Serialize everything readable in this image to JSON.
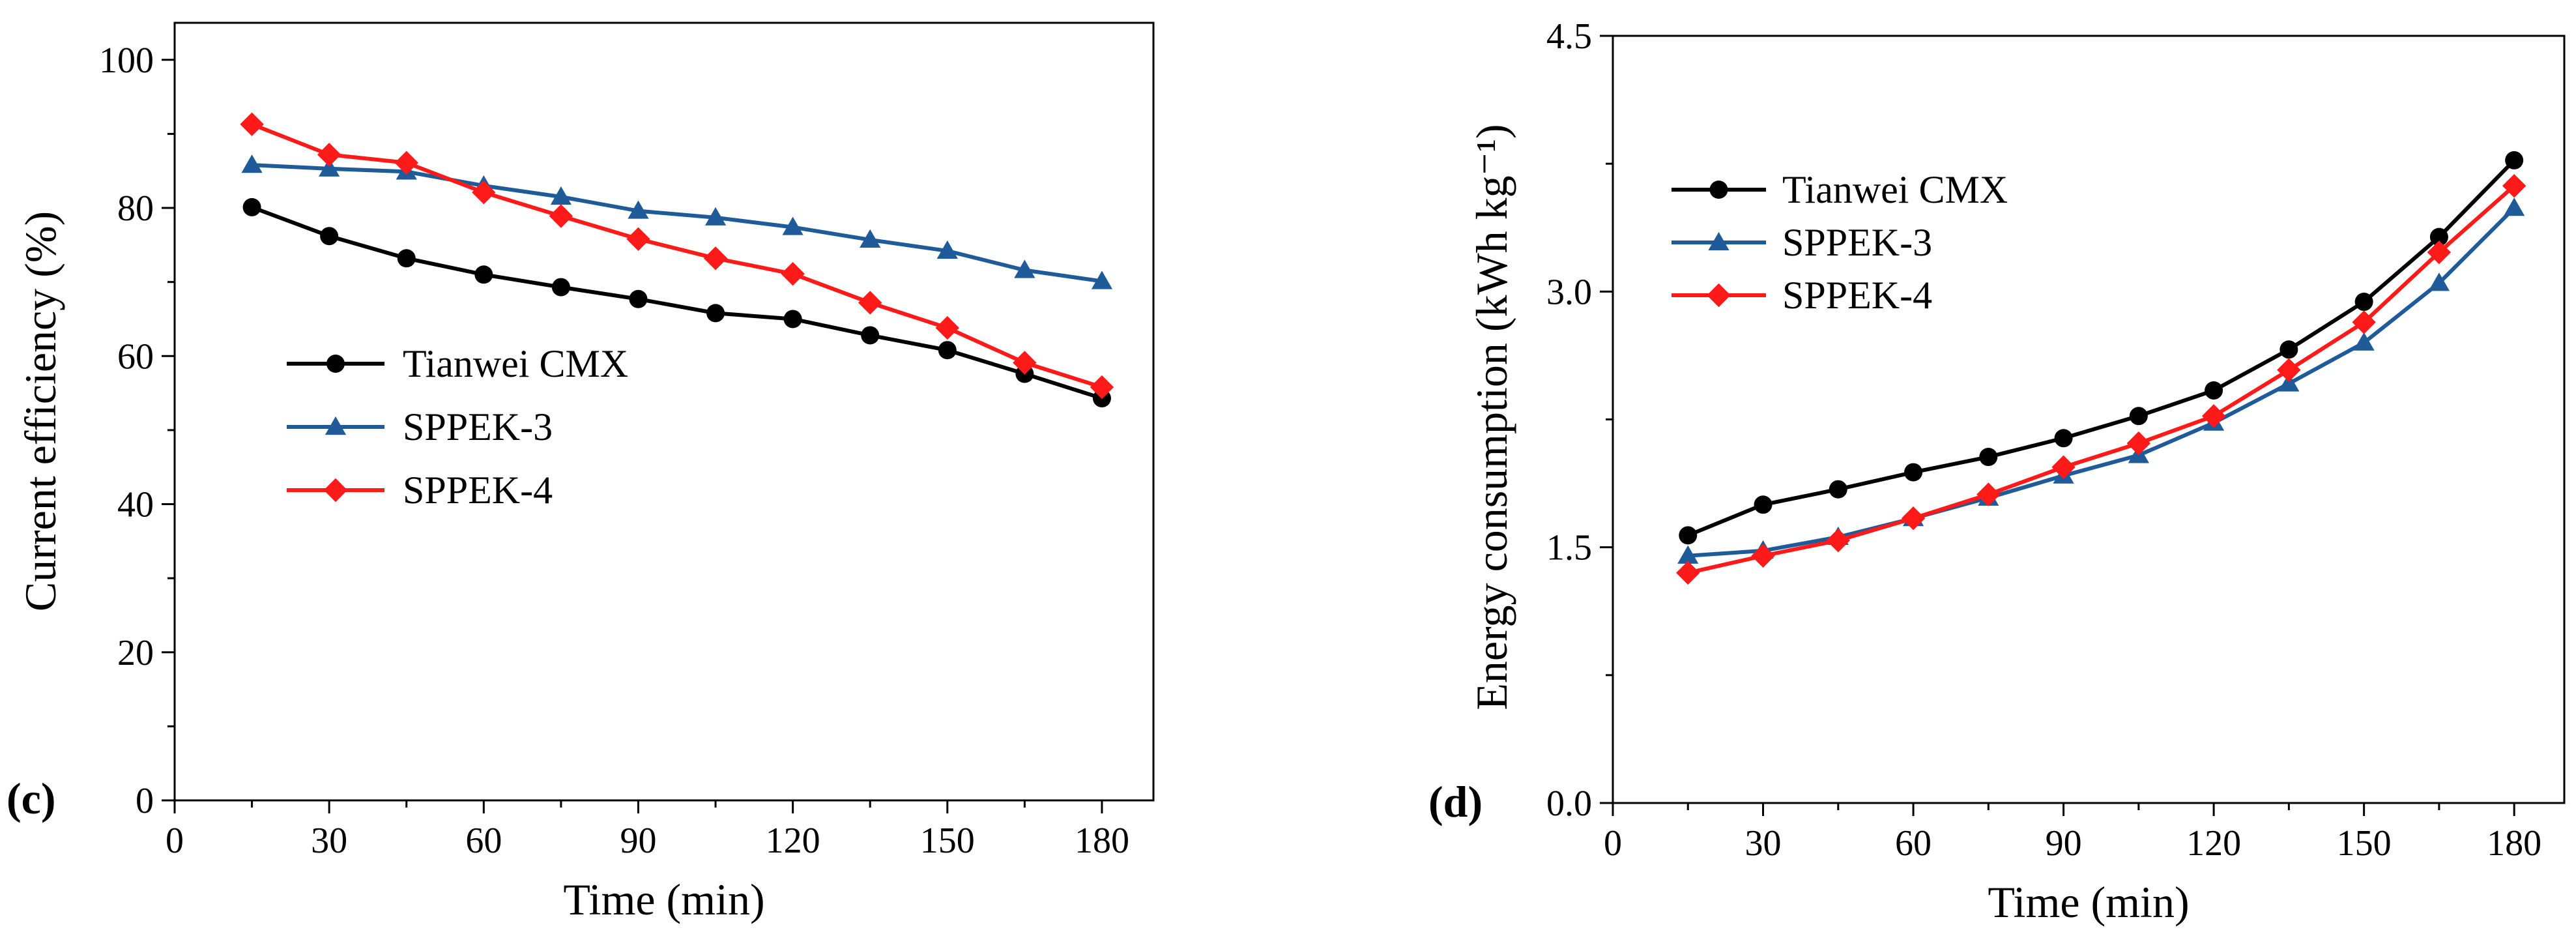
{
  "chart_data": [
    {
      "type": "line",
      "panel_label": "(c)",
      "xlabel": "Time (min)",
      "ylabel": "Current efficiency (%)",
      "xlim": [
        0,
        190
      ],
      "ylim": [
        0,
        105
      ],
      "xticks": [
        0,
        30,
        60,
        90,
        120,
        150,
        180
      ],
      "yticks": [
        0,
        20,
        40,
        60,
        80,
        100
      ],
      "legend_position": "center-left",
      "x": [
        15,
        30,
        45,
        60,
        75,
        90,
        105,
        120,
        135,
        150,
        165,
        180
      ],
      "series": [
        {
          "name": "Tianwei CMX",
          "marker": "circle",
          "color": "#000000",
          "values": [
            80.1,
            76.2,
            73.2,
            71.0,
            69.3,
            67.7,
            65.8,
            65.0,
            62.8,
            60.8,
            57.6,
            54.3
          ]
        },
        {
          "name": "SPPEK-3",
          "marker": "triangle",
          "color": "#1f5b99",
          "values": [
            85.8,
            85.3,
            84.9,
            83.0,
            81.5,
            79.6,
            78.7,
            77.4,
            75.7,
            74.2,
            71.6,
            70.1
          ]
        },
        {
          "name": "SPPEK-4",
          "marker": "diamond",
          "color": "#ff1a1a",
          "values": [
            91.3,
            87.2,
            86.1,
            82.1,
            78.9,
            75.8,
            73.2,
            71.1,
            67.2,
            63.8,
            59.1,
            55.8
          ]
        }
      ]
    },
    {
      "type": "line",
      "panel_label": "(d)",
      "xlabel": "Time (min)",
      "ylabel": "Energy consumption (kWh kg⁻¹)",
      "xlim": [
        0,
        190
      ],
      "ylim": [
        0,
        4.5
      ],
      "xticks": [
        0,
        30,
        60,
        90,
        120,
        150,
        180
      ],
      "yticks": [
        "0.0",
        "1.5",
        "3.0",
        "4.5"
      ],
      "legend_position": "top-left",
      "x": [
        15,
        30,
        45,
        60,
        75,
        90,
        105,
        120,
        135,
        150,
        165,
        180
      ],
      "series": [
        {
          "name": "Tianwei CMX",
          "marker": "circle",
          "color": "#000000",
          "values": [
            1.57,
            1.75,
            1.84,
            1.94,
            2.03,
            2.14,
            2.27,
            2.42,
            2.66,
            2.94,
            3.32,
            3.77
          ]
        },
        {
          "name": "SPPEK-3",
          "marker": "triangle",
          "color": "#1f5b99",
          "values": [
            1.45,
            1.48,
            1.56,
            1.67,
            1.79,
            1.92,
            2.04,
            2.23,
            2.46,
            2.7,
            3.05,
            3.49
          ]
        },
        {
          "name": "SPPEK-4",
          "marker": "diamond",
          "color": "#ff1a1a",
          "values": [
            1.35,
            1.45,
            1.54,
            1.67,
            1.81,
            1.97,
            2.11,
            2.27,
            2.54,
            2.82,
            3.23,
            3.62
          ]
        }
      ]
    }
  ]
}
